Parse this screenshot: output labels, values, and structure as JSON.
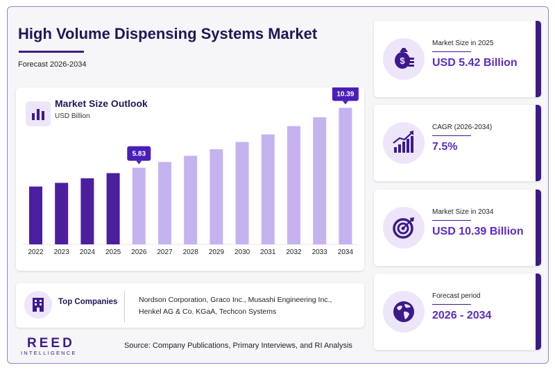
{
  "header": {
    "title": "High Volume Dispensing Systems Market",
    "subtitle": "Forecast 2026-2034"
  },
  "chart_panel": {
    "title": "Market Size Outlook",
    "unit": "USD Billion"
  },
  "chart_data": {
    "type": "bar",
    "categories": [
      "2022",
      "2023",
      "2024",
      "2025",
      "2026",
      "2027",
      "2028",
      "2029",
      "2030",
      "2031",
      "2032",
      "2033",
      "2034"
    ],
    "values": [
      4.4,
      4.68,
      5.03,
      5.42,
      5.83,
      6.27,
      6.74,
      7.24,
      7.79,
      8.37,
      9.0,
      9.67,
      10.39
    ],
    "annotations": [
      {
        "category": "2026",
        "label": "5.83"
      },
      {
        "category": "2034",
        "label": "10.39"
      }
    ],
    "historical_color": "#4b1f9e",
    "forecast_color": "#c5b3f0",
    "callout_color": "#4a1fb8",
    "ylim": [
      0,
      11.2
    ],
    "grid": false
  },
  "companies": {
    "label": "Top Companies",
    "text": "Nordson Corporation, Graco Inc., Musashi Engineering Inc., Henkel AG & Co. KGaA, Techcon Systems"
  },
  "logo": {
    "main": "REED",
    "sub": "INTELLIGENCE"
  },
  "source": "Source: Company Publications, Primary Interviews, and RI Analysis",
  "stats": [
    {
      "label": "Market Size in 2025",
      "value": "USD 5.42 Billion",
      "icon": "money-bag-icon"
    },
    {
      "label": "CAGR (2026-2034)",
      "value": "7.5%",
      "icon": "growth-chart-icon"
    },
    {
      "label": "Market Size in 2034",
      "value": "USD 10.39 Billion",
      "icon": "target-icon"
    },
    {
      "label": "Forecast period",
      "value": "2026 - 2034",
      "icon": "globe-icon"
    }
  ],
  "colors": {
    "title": "#1d1857",
    "accent": "#3d1a8a",
    "value": "#5b2bc4",
    "icon_bg": "#ede5f9"
  }
}
